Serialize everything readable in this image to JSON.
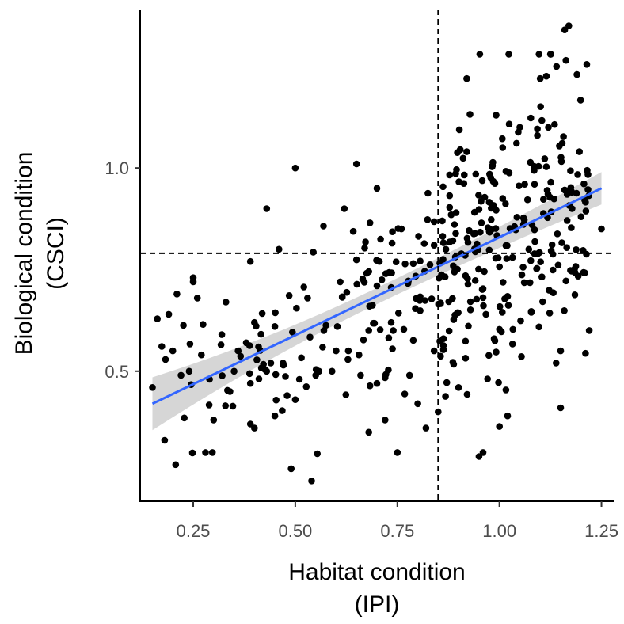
{
  "chart_data": {
    "type": "scatter",
    "xlabel": [
      "Habitat condition",
      "(IPI)"
    ],
    "ylabel": [
      "Biological condition",
      "(CSCI)"
    ],
    "xlim": [
      0.12,
      1.28
    ],
    "ylim": [
      0.18,
      1.39
    ],
    "xticks": [
      0.25,
      0.5,
      0.75,
      1.0,
      1.25
    ],
    "xtick_labels": [
      "0.25",
      "0.50",
      "0.75",
      "1.00",
      "1.25"
    ],
    "yticks": [
      0.5,
      1.0
    ],
    "ytick_labels": [
      "0.5",
      "1.0"
    ],
    "grid": false,
    "reference_lines": [
      {
        "orientation": "vertical",
        "value": 0.85,
        "style": "dashed"
      },
      {
        "orientation": "horizontal",
        "value": 0.79,
        "style": "dashed"
      }
    ],
    "trend": {
      "method": "linear fit with confidence band",
      "x": [
        0.15,
        1.25
      ],
      "y": [
        0.42,
        0.95
      ],
      "band_halfwidth": [
        0.065,
        0.02,
        0.04
      ],
      "color": "#3366ff"
    },
    "point_color": "#000000",
    "points_generated_count": 380,
    "points": [
      [
        0.15,
        0.46
      ],
      [
        0.18,
        0.33
      ],
      [
        0.19,
        0.64
      ],
      [
        0.21,
        0.69
      ],
      [
        0.2,
        0.55
      ],
      [
        0.22,
        0.49
      ],
      [
        0.24,
        0.5
      ],
      [
        0.25,
        0.73
      ],
      [
        0.25,
        0.72
      ],
      [
        0.26,
        0.68
      ],
      [
        0.27,
        0.54
      ],
      [
        0.28,
        0.3
      ],
      [
        0.29,
        0.48
      ],
      [
        0.3,
        0.38
      ],
      [
        0.32,
        0.59
      ],
      [
        0.33,
        0.67
      ],
      [
        0.34,
        0.45
      ],
      [
        0.35,
        0.5
      ],
      [
        0.36,
        0.55
      ],
      [
        0.38,
        0.57
      ],
      [
        0.39,
        0.47
      ],
      [
        0.39,
        0.37
      ],
      [
        0.4,
        0.62
      ],
      [
        0.4,
        0.36
      ],
      [
        0.41,
        0.56
      ],
      [
        0.43,
        0.9
      ],
      [
        0.43,
        0.5
      ],
      [
        0.44,
        0.52
      ],
      [
        0.45,
        0.61
      ],
      [
        0.45,
        0.39
      ],
      [
        0.46,
        0.8
      ],
      [
        0.47,
        0.52
      ],
      [
        0.48,
        0.44
      ],
      [
        0.49,
        0.26
      ],
      [
        0.5,
        1.0
      ],
      [
        0.5,
        0.43
      ],
      [
        0.51,
        0.48
      ],
      [
        0.53,
        0.68
      ],
      [
        0.54,
        0.23
      ],
      [
        0.55,
        0.49
      ],
      [
        0.57,
        0.6
      ],
      [
        0.59,
        0.5
      ],
      [
        0.6,
        0.55
      ],
      [
        0.61,
        0.72
      ],
      [
        0.62,
        0.9
      ],
      [
        0.63,
        0.55
      ],
      [
        0.65,
        1.01
      ],
      [
        0.66,
        0.49
      ],
      [
        0.68,
        0.35
      ],
      [
        0.68,
        0.6
      ],
      [
        0.7,
        0.95
      ],
      [
        0.7,
        0.47
      ],
      [
        0.72,
        0.38
      ],
      [
        0.74,
        0.6
      ],
      [
        0.75,
        0.3
      ],
      [
        0.76,
        0.85
      ],
      [
        0.78,
        0.49
      ],
      [
        0.8,
        0.42
      ],
      [
        0.82,
        0.36
      ],
      [
        0.84,
        0.55
      ],
      [
        0.84,
        0.81
      ],
      [
        0.85,
        0.4
      ],
      [
        0.86,
        0.87
      ],
      [
        0.9,
        0.46
      ],
      [
        0.92,
        1.22
      ],
      [
        0.95,
        0.29
      ],
      [
        0.96,
        0.3
      ],
      [
        1.02,
        0.39
      ],
      [
        1.05,
        1.1
      ],
      [
        1.08,
        0.86
      ],
      [
        1.1,
        1.22
      ],
      [
        1.12,
        1.1
      ],
      [
        1.14,
        1.25
      ],
      [
        1.15,
        0.41
      ],
      [
        1.15,
        0.55
      ],
      [
        1.16,
        1.34
      ],
      [
        1.17,
        1.35
      ],
      [
        1.19,
        1.23
      ],
      [
        1.2,
        0.88
      ],
      [
        1.22,
        0.6
      ],
      [
        1.25,
        0.85
      ]
    ]
  }
}
